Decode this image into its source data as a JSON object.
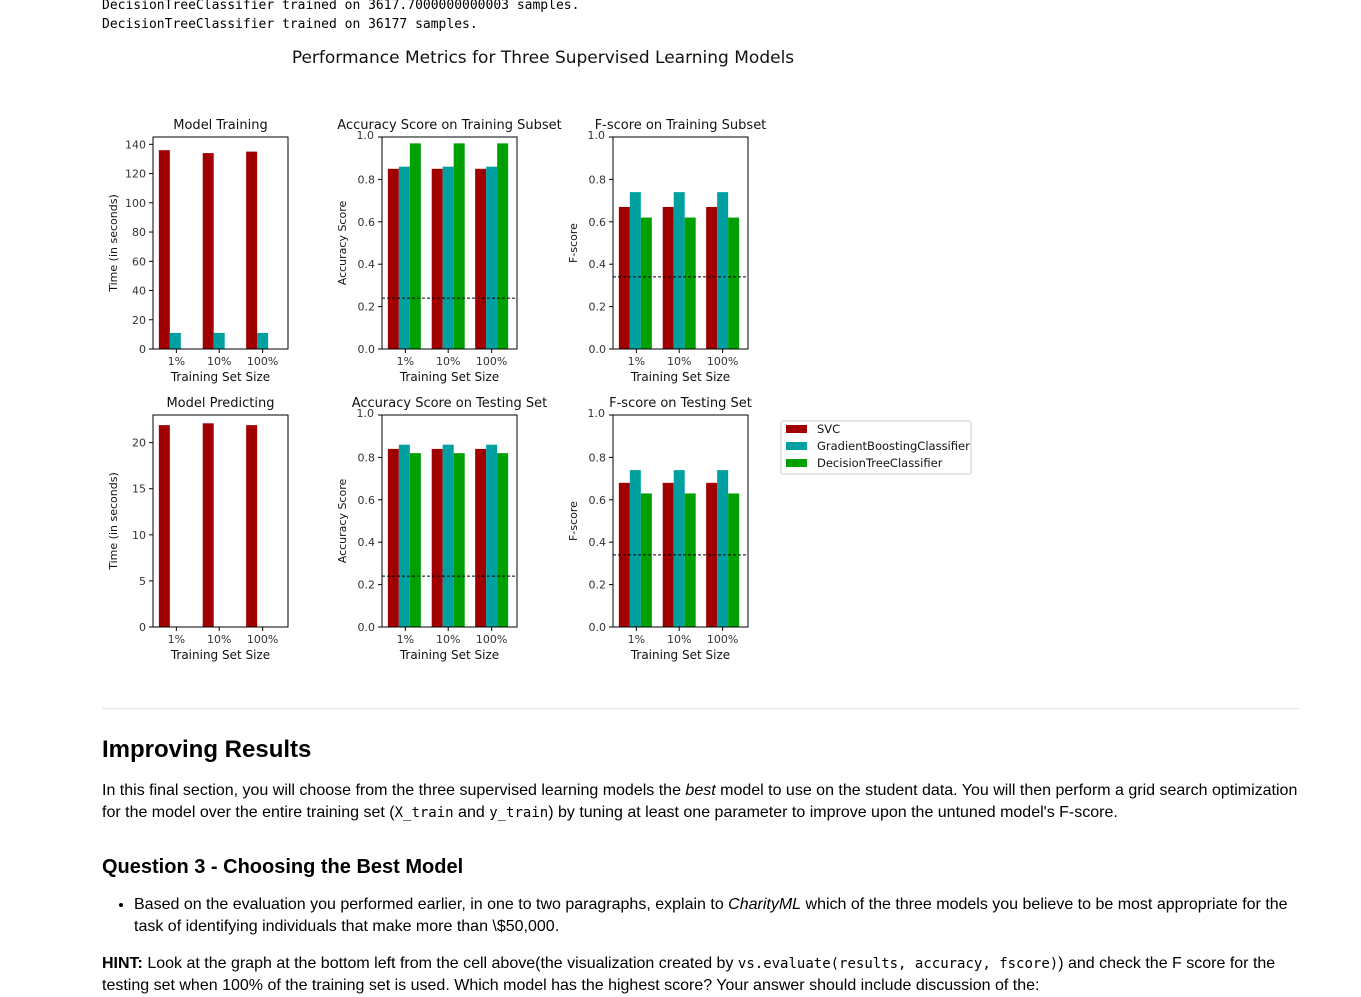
{
  "output_lines": [
    "DecisionTreeClassifier trained on 3617.7000000000003 samples.",
    "DecisionTreeClassifier trained on 36177 samples."
  ],
  "chart_data": {
    "type": "bar",
    "title": "Performance Metrics for Three Supervised Learning Models",
    "categories": [
      "1%",
      "10%",
      "100%"
    ],
    "xlabel": "Training Set Size",
    "legend": {
      "placement": "right",
      "entries": [
        {
          "name": "SVC",
          "color": "#a00000"
        },
        {
          "name": "GradientBoostingClassifier",
          "color": "#00a0a0"
        },
        {
          "name": "DecisionTreeClassifier",
          "color": "#00a000"
        }
      ]
    },
    "panels": [
      {
        "title": "Model Training",
        "ylabel": "Time (in seconds)",
        "ylim": [
          0,
          145
        ],
        "yticks": [
          0,
          20,
          40,
          60,
          80,
          100,
          120,
          140
        ],
        "series": [
          {
            "name": "SVC",
            "values": [
              136,
              134,
              135
            ]
          },
          {
            "name": "GradientBoostingClassifier",
            "values": [
              11,
              11,
              11
            ]
          },
          {
            "name": "DecisionTreeClassifier",
            "values": [
              0.2,
              0.2,
              0.2
            ]
          }
        ]
      },
      {
        "title": "Accuracy Score on Training Subset",
        "ylabel": "Accuracy Score",
        "ylim": [
          0,
          1.0
        ],
        "yticks": [
          0.0,
          0.2,
          0.4,
          0.6,
          0.8,
          1.0
        ],
        "baseline": 0.24,
        "series": [
          {
            "name": "SVC",
            "values": [
              0.85,
              0.85,
              0.85
            ]
          },
          {
            "name": "GradientBoostingClassifier",
            "values": [
              0.86,
              0.86,
              0.86
            ]
          },
          {
            "name": "DecisionTreeClassifier",
            "values": [
              0.97,
              0.97,
              0.97
            ]
          }
        ]
      },
      {
        "title": "F-score on Training Subset",
        "ylabel": "F-score",
        "ylim": [
          0,
          1.0
        ],
        "yticks": [
          0.0,
          0.2,
          0.4,
          0.6,
          0.8,
          1.0
        ],
        "baseline": 0.34,
        "series": [
          {
            "name": "SVC",
            "values": [
              0.67,
              0.67,
              0.67
            ]
          },
          {
            "name": "GradientBoostingClassifier",
            "values": [
              0.74,
              0.74,
              0.74
            ]
          },
          {
            "name": "DecisionTreeClassifier",
            "values": [
              0.62,
              0.62,
              0.62
            ]
          }
        ]
      },
      {
        "title": "Model Predicting",
        "ylabel": "Time (in seconds)",
        "ylim": [
          0,
          23
        ],
        "yticks": [
          0,
          5,
          10,
          15,
          20
        ],
        "series": [
          {
            "name": "SVC",
            "values": [
              21.9,
              22.1,
              21.9
            ]
          },
          {
            "name": "GradientBoostingClassifier",
            "values": [
              0.02,
              0.02,
              0.02
            ]
          },
          {
            "name": "DecisionTreeClassifier",
            "values": [
              0.01,
              0.01,
              0.01
            ]
          }
        ]
      },
      {
        "title": "Accuracy Score on Testing Set",
        "ylabel": "Accuracy Score",
        "ylim": [
          0,
          1.0
        ],
        "yticks": [
          0.0,
          0.2,
          0.4,
          0.6,
          0.8,
          1.0
        ],
        "baseline": 0.24,
        "series": [
          {
            "name": "SVC",
            "values": [
              0.84,
              0.84,
              0.84
            ]
          },
          {
            "name": "GradientBoostingClassifier",
            "values": [
              0.86,
              0.86,
              0.86
            ]
          },
          {
            "name": "DecisionTreeClassifier",
            "values": [
              0.82,
              0.82,
              0.82
            ]
          }
        ]
      },
      {
        "title": "F-score on Testing Set",
        "ylabel": "F-score",
        "ylim": [
          0,
          1.0
        ],
        "yticks": [
          0.0,
          0.2,
          0.4,
          0.6,
          0.8,
          1.0
        ],
        "baseline": 0.34,
        "series": [
          {
            "name": "SVC",
            "values": [
              0.68,
              0.68,
              0.68
            ]
          },
          {
            "name": "GradientBoostingClassifier",
            "values": [
              0.74,
              0.74,
              0.74
            ]
          },
          {
            "name": "DecisionTreeClassifier",
            "values": [
              0.63,
              0.63,
              0.63
            ]
          }
        ]
      }
    ]
  },
  "improving": {
    "heading": "Improving Results",
    "p_part1": "In this final section, you will choose from the three supervised learning models the ",
    "p_em": "best",
    "p_part2": " model to use on the student data. You will then perform a grid search optimization for the model over the entire training set (",
    "p_code1": "X_train",
    "p_and": " and ",
    "p_code2": "y_train",
    "p_part3": ") by tuning at least one parameter to improve upon the untuned model's F-score."
  },
  "question3": {
    "heading": "Question 3 - Choosing the Best Model",
    "bullet_part1": "Based on the evaluation you performed earlier, in one to two paragraphs, explain to ",
    "bullet_em": "CharityML",
    "bullet_part2": " which of the three models you believe to be most appropriate for the task of identifying individuals that make more than \\$50,000."
  },
  "hint": {
    "label": "HINT:",
    "part1": " Look at the graph at the bottom left from the cell above(the visualization created by ",
    "code": "vs.evaluate(results, accuracy, fscore)",
    "part2": ") and check the F score for the testing set when 100% of the training set is used. Which model has the highest score? Your answer should include discussion of the:"
  }
}
